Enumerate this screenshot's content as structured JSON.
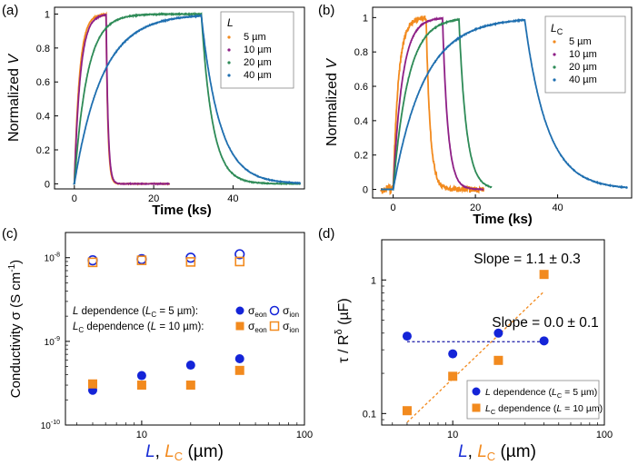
{
  "figure": {
    "colors": {
      "orange": "#f28a1e",
      "purple": "#8e1f86",
      "green": "#2e8b57",
      "blue": "#1f6fb0",
      "eon": "#1424d8",
      "ion_orange": "#f28a1e",
      "slope_blue": "#1a1aa8"
    }
  },
  "chart_data": [
    {
      "panel_label": "(a)",
      "type": "line",
      "xlabel": "Time (ks)",
      "ylabel_main": "Normalized ",
      "ylabel_var": "V",
      "xlim": [
        -5,
        58
      ],
      "ylim": [
        -0.03,
        1.04
      ],
      "xticks": [
        "0",
        "20",
        "40"
      ],
      "yticks": [
        "0",
        "0.2",
        "0.4",
        "0.6",
        "0.8",
        "1"
      ],
      "legend_title": "L",
      "legend_entries": [
        "5 µm",
        "10 µm",
        "20 µm",
        "40 µm"
      ],
      "series": [
        {
          "name": "5 µm",
          "color": "orange",
          "on": 0,
          "off": 8,
          "end": 24,
          "tau_rise": 1.3,
          "tau_fall": 0.45
        },
        {
          "name": "10 µm",
          "color": "purple",
          "on": 0,
          "off": 8,
          "end": 24,
          "tau_rise": 1.5,
          "tau_fall": 0.5
        },
        {
          "name": "20 µm",
          "color": "green",
          "on": 0,
          "off": 32,
          "end": 57,
          "tau_rise": 3.2,
          "tau_fall": 2.8
        },
        {
          "name": "40 µm",
          "color": "blue",
          "on": 0,
          "off": 32,
          "end": 57,
          "tau_rise": 7.0,
          "tau_fall": 4.6
        }
      ]
    },
    {
      "panel_label": "(b)",
      "type": "line",
      "xlabel": "Time (ks)",
      "ylabel_main": "Normalized ",
      "ylabel_var": "V",
      "xlim": [
        -5,
        58
      ],
      "ylim": [
        -0.05,
        1.06
      ],
      "xticks": [
        "0",
        "20",
        "40"
      ],
      "yticks": [
        "0",
        "0.2",
        "0.4",
        "0.6",
        "0.8",
        "1"
      ],
      "legend_title": "L",
      "legend_title_sub": "C",
      "legend_entries": [
        "5 µm",
        "10 µm",
        "20 µm",
        "40 µm"
      ],
      "series": [
        {
          "name": "5 µm",
          "color": "orange",
          "on": 0,
          "off": 8,
          "end": 22,
          "tau_rise": 1.3,
          "tau_fall": 1.0,
          "noise": 0.03
        },
        {
          "name": "10 µm",
          "color": "purple",
          "on": 0,
          "off": 12,
          "end": 22,
          "tau_rise": 2.2,
          "tau_fall": 1.3
        },
        {
          "name": "20 µm",
          "color": "green",
          "on": 0,
          "off": 16,
          "end": 24,
          "tau_rise": 3.6,
          "tau_fall": 1.8
        },
        {
          "name": "40 µm",
          "color": "blue",
          "on": 0,
          "off": 32,
          "end": 57,
          "tau_rise": 7.5,
          "tau_fall": 5.5
        }
      ]
    },
    {
      "panel_label": "(c)",
      "type": "scatter",
      "xlabel_parts": [
        "L",
        ", ",
        "L",
        "C",
        " (µm)"
      ],
      "ylabel_main": "Conductivity σ (S cm",
      "ylabel_sup": "-1",
      "ylabel_end": ")",
      "xscale": "log",
      "yscale": "log",
      "xlim": [
        3.4,
        100
      ],
      "ylim": [
        1e-10,
        2e-08
      ],
      "xticks": [
        {
          "value": 10,
          "label": "10"
        },
        {
          "value": 100,
          "label": "100"
        }
      ],
      "yticks": [
        {
          "value": 1e-10,
          "label_base": "10",
          "label_exp": "-10"
        },
        {
          "value": 1e-09,
          "label_base": "10",
          "label_exp": "-9"
        },
        {
          "value": 1e-08,
          "label_base": "10",
          "label_exp": "-8"
        }
      ],
      "legend_rows": [
        {
          "label_var": "L",
          "label_rest": " dependence (",
          "sub_var": "L",
          "sub_sub": "C",
          "sub_rest": " = 5 µm):",
          "eon": "σ",
          "eon_sub": "eon",
          "ion": "σ",
          "ion_sub": "ion"
        },
        {
          "label_var": "L",
          "label_sub": "C",
          "label_rest": " dependence (",
          "sub_var": "L",
          "sub_rest": " = 10 µm):",
          "eon": "σ",
          "eon_sub": "eon",
          "ion": "σ",
          "ion_sub": "ion"
        }
      ],
      "series": [
        {
          "name": "L σeon",
          "marker": "filled-circle",
          "color": "eon",
          "x": [
            5,
            10,
            20,
            40
          ],
          "y": [
            2.6e-10,
            3.9e-10,
            5.2e-10,
            6.2e-10
          ]
        },
        {
          "name": "L σion",
          "marker": "open-circle",
          "color": "eon",
          "x": [
            5,
            10,
            20,
            40
          ],
          "y": [
            9.3e-09,
            9.6e-09,
            1e-08,
            1.1e-08
          ]
        },
        {
          "name": "LC σeon",
          "marker": "filled-square",
          "color": "ion_orange",
          "x": [
            5,
            10,
            20,
            40
          ],
          "y": [
            3.1e-10,
            3e-10,
            3e-10,
            4.5e-10
          ]
        },
        {
          "name": "LC σion",
          "marker": "open-square",
          "color": "ion_orange",
          "x": [
            5,
            10,
            20,
            40
          ],
          "y": [
            8.8e-09,
            9.3e-09,
            8.9e-09,
            9e-09
          ]
        }
      ]
    },
    {
      "panel_label": "(d)",
      "type": "scatter",
      "xlabel_parts": [
        "L",
        ", ",
        "L",
        "C",
        " (µm)"
      ],
      "ylabel_main": "τ / R",
      "ylabel_sup": "δ",
      "ylabel_end": " (µF)",
      "xscale": "log",
      "yscale": "log",
      "xlim": [
        3.4,
        100
      ],
      "ylim": [
        0.082,
        2.0
      ],
      "xticks": [
        {
          "value": 10,
          "label": "10"
        },
        {
          "value": 100,
          "label": "100"
        }
      ],
      "yticks": [
        {
          "value": 0.1,
          "label": "0.1"
        },
        {
          "value": 1,
          "label": "1"
        }
      ],
      "annotations": [
        {
          "text": "Slope = 1.1 ± 0.3",
          "color": "ion_orange"
        },
        {
          "text": "Slope = 0.0 ± 0.1",
          "color": "slope_blue"
        }
      ],
      "legend_rows": [
        {
          "label_var": "L",
          "label_rest": " dependence (",
          "sub_var": "L",
          "sub_sub": "C",
          "sub_rest": " = 5 µm)"
        },
        {
          "label_var": "L",
          "label_sub": "C",
          "label_rest": " dependence (",
          "sub_var": "L",
          "sub_rest": " = 10 µm)"
        }
      ],
      "series": [
        {
          "name": "L dependence",
          "marker": "filled-circle",
          "color": "eon",
          "x": [
            5,
            10,
            20,
            40
          ],
          "y": [
            0.38,
            0.28,
            0.4,
            0.35
          ]
        },
        {
          "name": "LC dependence",
          "marker": "filled-square",
          "color": "ion_orange",
          "x": [
            5,
            10,
            20,
            40
          ],
          "y": [
            0.105,
            0.19,
            0.25,
            1.1
          ]
        }
      ],
      "fits": [
        {
          "color": "ion_orange",
          "x": [
            5,
            40
          ],
          "y": [
            0.086,
            0.82
          ]
        },
        {
          "color": "slope_blue",
          "x": [
            5,
            40
          ],
          "y": [
            0.345,
            0.345
          ]
        }
      ]
    }
  ]
}
